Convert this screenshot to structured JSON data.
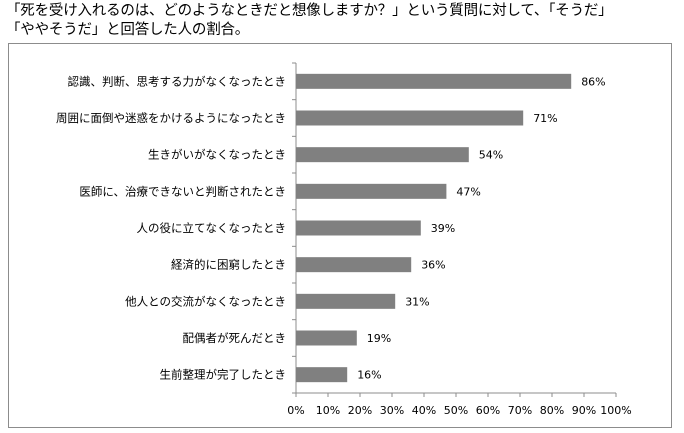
{
  "header": {
    "title_line1": "「死を受け入れるのは、どのようなときだと想像しますか？」という質問に対して、「そうだ」",
    "title_line2": "「ややそうだ」と回答した人の割合。"
  },
  "colors": {
    "bar": "#808080",
    "axis": "#8c8c8c",
    "frame": "#8c8c8c"
  },
  "chart_data": {
    "type": "bar",
    "orientation": "horizontal",
    "categories": [
      "認識、判断、思考する力がなくなったとき",
      "周囲に面倒や迷惑をかけるようになったとき",
      "生きがいがなくなったとき",
      "医師に、治療できないと判断されたとき",
      "人の役に立てなくなったとき",
      "経済的に困窮したとき",
      "他人との交流がなくなったとき",
      "配偶者が死んだとき",
      "生前整理が完了したとき"
    ],
    "values": [
      86,
      71,
      54,
      47,
      39,
      36,
      31,
      19,
      16
    ],
    "value_labels": [
      "86%",
      "71%",
      "54%",
      "47%",
      "39%",
      "36%",
      "31%",
      "19%",
      "16%"
    ],
    "xlim": [
      0,
      100
    ],
    "x_ticks": [
      0,
      10,
      20,
      30,
      40,
      50,
      60,
      70,
      80,
      90,
      100
    ],
    "x_tick_labels": [
      "0%",
      "10%",
      "20%",
      "30%",
      "40%",
      "50%",
      "60%",
      "70%",
      "80%",
      "90%",
      "100%"
    ],
    "grid": false,
    "legend": "none"
  }
}
